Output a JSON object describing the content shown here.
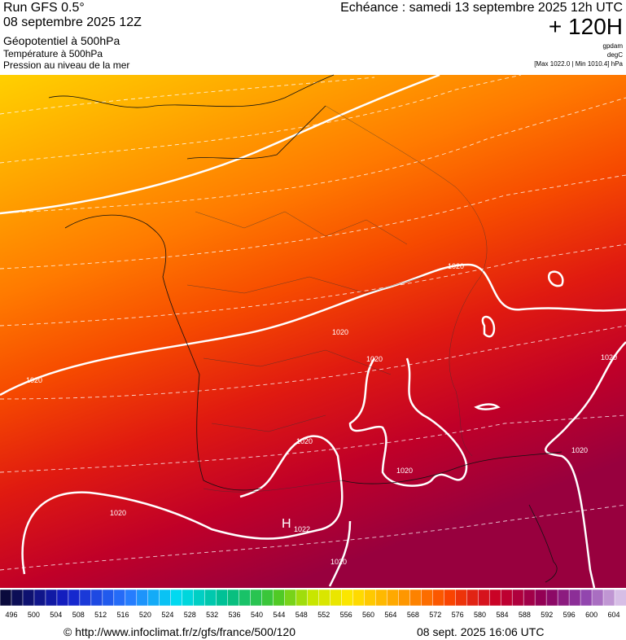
{
  "header": {
    "run": "Run GFS 0.5°",
    "date": "08 septembre 2025 12Z",
    "field1": "Géopotentiel à 500hPa",
    "field2": "Température à 500hPa",
    "field3": "Pression au niveau de la mer",
    "echeance": "Echéance : samedi 13 septembre 2025 12h UTC",
    "lead": "+ 120H",
    "unit1": "gpdam",
    "unit2": "degC",
    "range": "[Max 1022.0 | Min 1010.4] hPa"
  },
  "map": {
    "contour_labels": [
      "1020",
      "1020",
      "1020",
      "1020",
      "1020",
      "1020",
      "1020",
      "1020",
      "1020",
      "1020"
    ],
    "high": "H",
    "high_value": "1022"
  },
  "scale": {
    "labels": [
      496,
      500,
      504,
      508,
      512,
      516,
      520,
      524,
      528,
      532,
      536,
      540,
      544,
      548,
      552,
      556,
      560,
      564,
      568,
      572,
      576,
      580,
      584,
      588,
      592,
      596,
      600,
      604
    ]
  },
  "footer": {
    "url": "© http://www.infoclimat.fr/z/gfs/france/500/120",
    "timestamp": "08 sept. 2025 16:06 UTC"
  }
}
